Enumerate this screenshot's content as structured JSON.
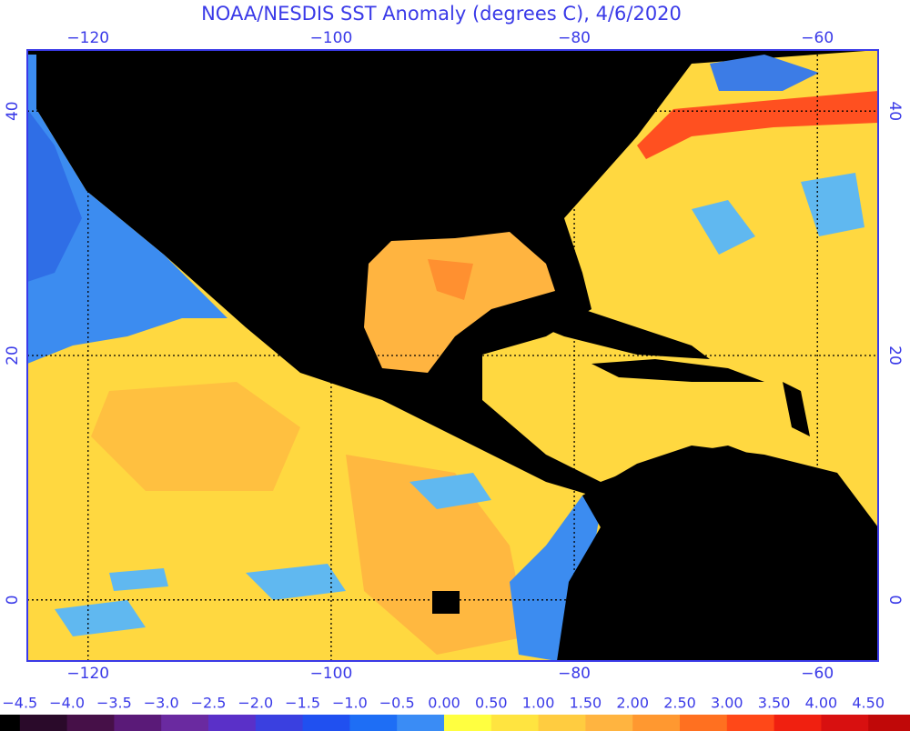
{
  "map": {
    "title": "NOAA/NESDIS SST Anomaly (degrees C), 4/6/2020",
    "xlim": [
      -125,
      -55
    ],
    "ylim": [
      -5,
      45
    ],
    "xticks": [
      {
        "value": -120,
        "label": "−120"
      },
      {
        "value": -100,
        "label": "−100"
      },
      {
        "value": -80,
        "label": "−80"
      },
      {
        "value": -60,
        "label": "−60"
      }
    ],
    "yticks": [
      0,
      20,
      40
    ],
    "grid": true,
    "colorbar": {
      "lim": [
        -5,
        5
      ],
      "ticks": [
        {
          "value": -4.5,
          "label": "−4.5"
        },
        {
          "value": -4,
          "label": "−4.0"
        },
        {
          "value": -3.5,
          "label": "−3.5"
        },
        {
          "value": -3,
          "label": "−3.0"
        },
        {
          "value": -2.5,
          "label": "−2.5"
        },
        {
          "value": -2,
          "label": "−2.0"
        },
        {
          "value": -1.5,
          "label": "−1.5"
        },
        {
          "value": -1,
          "label": "−1.0"
        },
        {
          "value": -0.5,
          "label": "−0.5"
        },
        {
          "value": 0,
          "label": "0.00"
        },
        {
          "value": 0.5,
          "label": "0.50"
        },
        {
          "value": 1,
          "label": "1.00"
        },
        {
          "value": 1.5,
          "label": "1.50"
        },
        {
          "value": 2,
          "label": "2.00"
        },
        {
          "value": 2.5,
          "label": "2.50"
        },
        {
          "value": 3,
          "label": "3.00"
        },
        {
          "value": 3.5,
          "label": "3.50"
        },
        {
          "value": 4,
          "label": "4.00"
        },
        {
          "value": 4.5,
          "label": "4.50"
        }
      ],
      "colors": [
        "#000000",
        "#2a0a2a",
        "#461048",
        "#5a1a78",
        "#6a2aa0",
        "#5a30c8",
        "#3a40e0",
        "#2050f0",
        "#1e6ef5",
        "#3a8cf5",
        "#ffff40",
        "#ffe440",
        "#ffcc40",
        "#ffb440",
        "#ff9830",
        "#ff7020",
        "#ff4818",
        "#f02010",
        "#d81010",
        "#c00808"
      ]
    }
  }
}
